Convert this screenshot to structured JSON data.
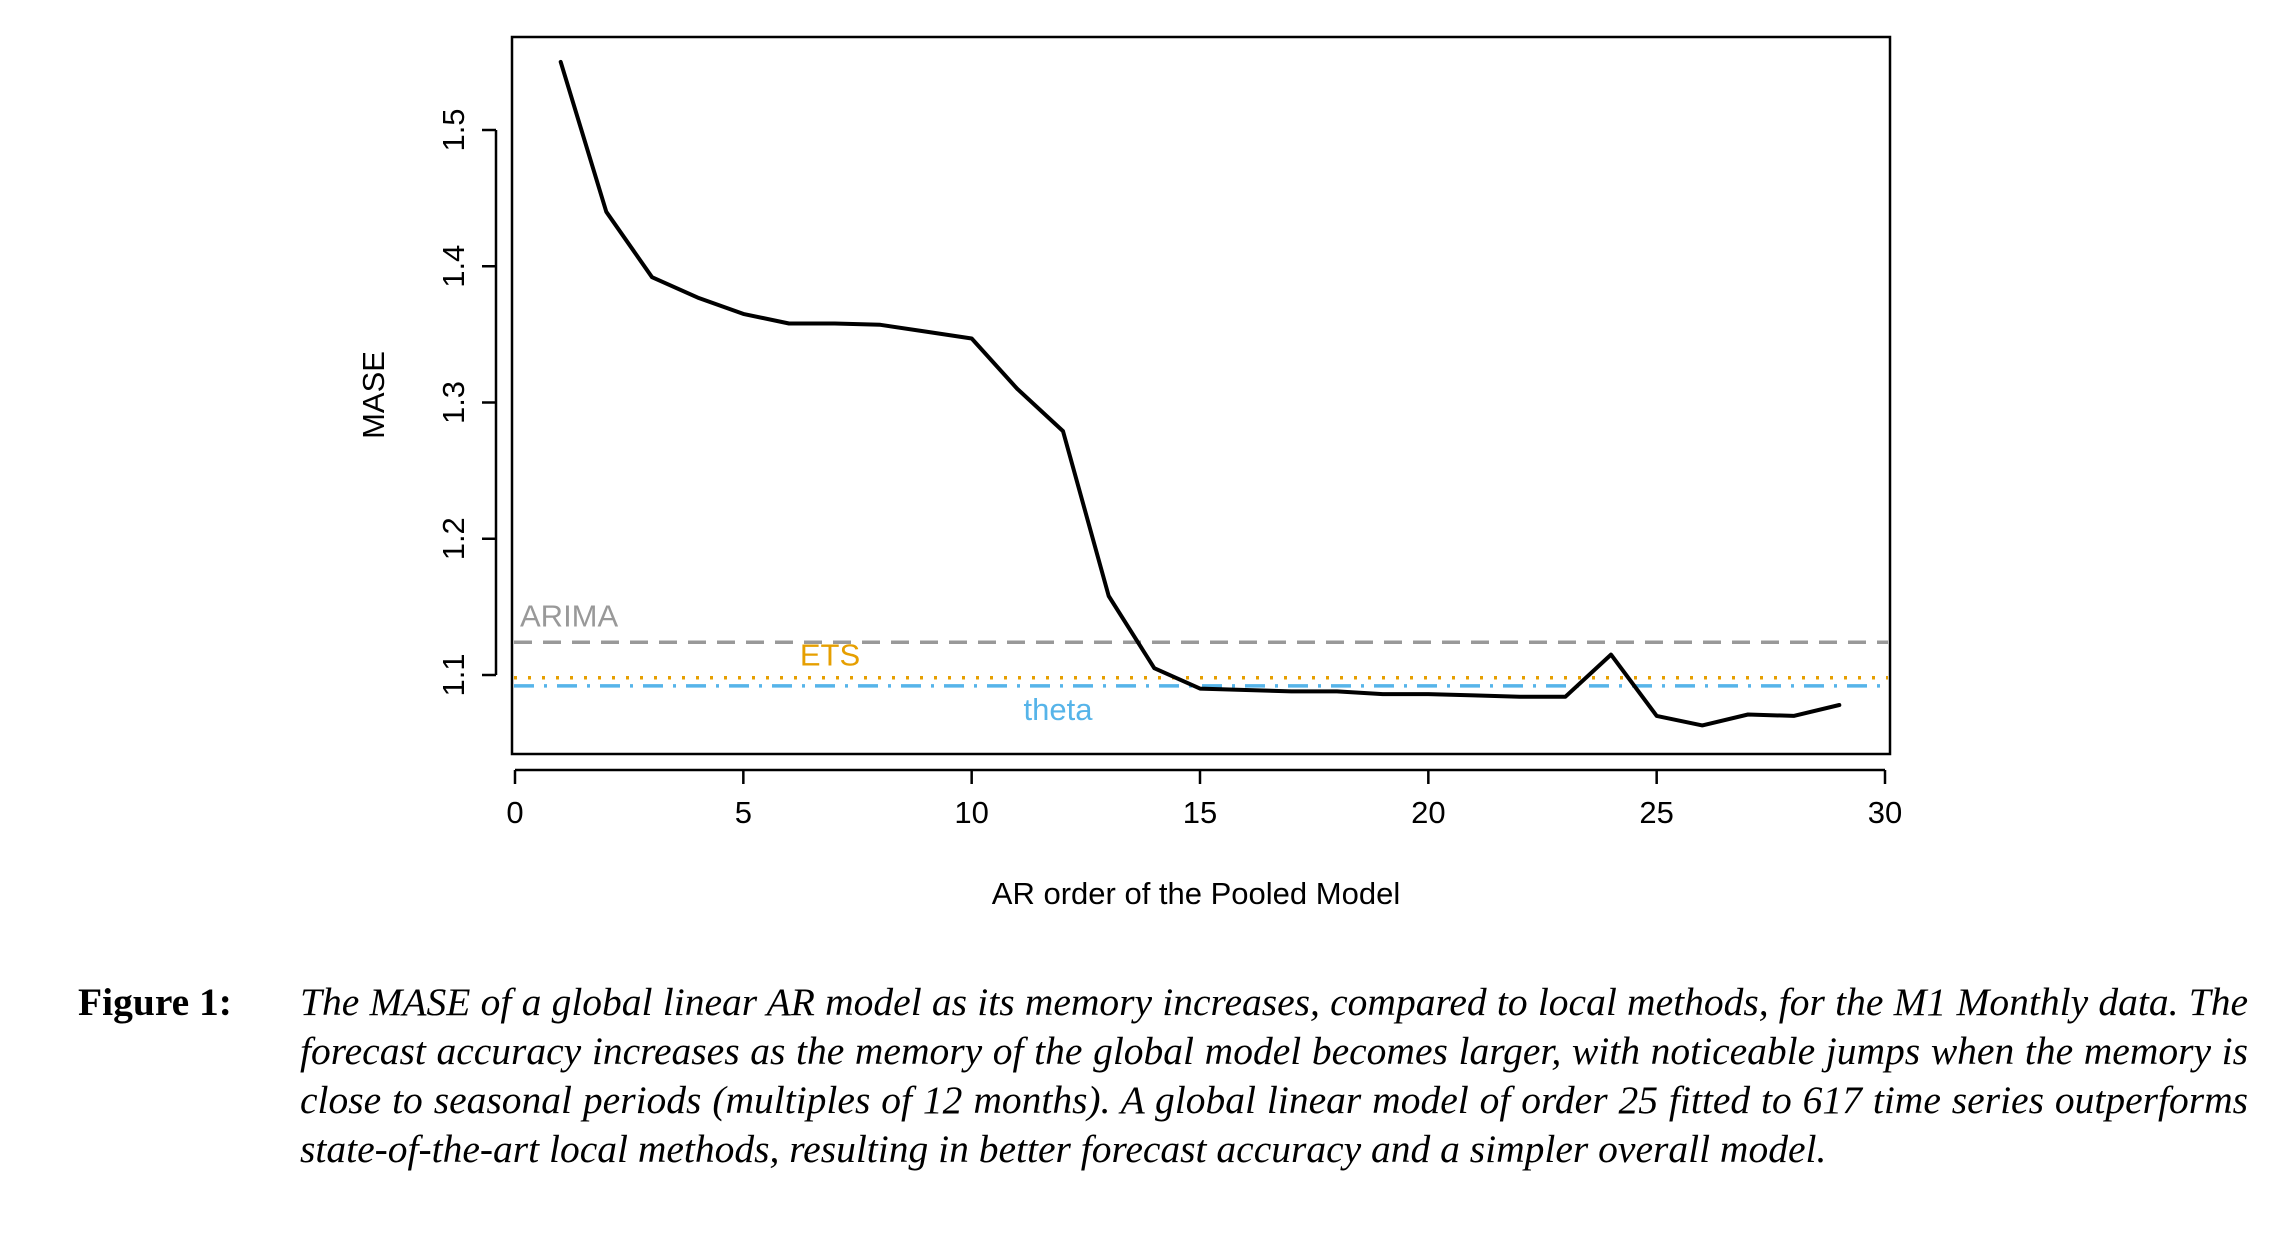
{
  "chart_data": {
    "type": "line",
    "title": "",
    "xlabel": "AR order of the Pooled Model",
    "ylabel": "MASE",
    "xlim": [
      0,
      30
    ],
    "ylim": [
      1.045,
      1.57
    ],
    "x_ticks": [
      0,
      5,
      10,
      15,
      20,
      25,
      30
    ],
    "y_ticks": [
      1.1,
      1.2,
      1.3,
      1.4,
      1.5
    ],
    "x_tick_labels": [
      "0",
      "5",
      "10",
      "15",
      "20",
      "25",
      "30"
    ],
    "y_tick_labels": [
      "1.1",
      "1.2",
      "1.3",
      "1.4",
      "1.5"
    ],
    "grid": false,
    "series": [
      {
        "color": "#000000",
        "style": "solid",
        "x": [
          1,
          2,
          3,
          4,
          5,
          6,
          7,
          8,
          9,
          10,
          11,
          12,
          13,
          14,
          15,
          16,
          17,
          18,
          19,
          20,
          21,
          22,
          23,
          24,
          25,
          26,
          27,
          28,
          29
        ],
        "values": [
          1.55,
          1.44,
          1.392,
          1.377,
          1.365,
          1.358,
          1.358,
          1.357,
          1.352,
          1.347,
          1.31,
          1.279,
          1.158,
          1.105,
          1.09,
          1.089,
          1.088,
          1.088,
          1.086,
          1.086,
          1.085,
          1.084,
          1.084,
          1.115,
          1.07,
          1.063,
          1.071,
          1.07,
          1.078
        ]
      }
    ],
    "reference_lines": [
      {
        "label": "ARIMA",
        "y": 1.124,
        "color": "#999999",
        "style": "dashed"
      },
      {
        "label": "ETS",
        "y": 1.098,
        "color": "#E69F00",
        "style": "dotted"
      },
      {
        "label": "theta",
        "y": 1.092,
        "color": "#56B4E9",
        "style": "dashdot"
      }
    ]
  },
  "caption": {
    "label": "Figure 1:",
    "text": "The MASE of a global linear AR model as its memory increases, compared to local methods, for the M1 Monthly data. The forecast accuracy increases as the memory of the global model becomes larger, with noticeable jumps when the memory is close to seasonal periods (multiples of 12 months). A global linear model of order 25 fitted to 617 time series outperforms state-of-the-art local methods, resulting in better forecast accuracy and a simpler overall model."
  }
}
